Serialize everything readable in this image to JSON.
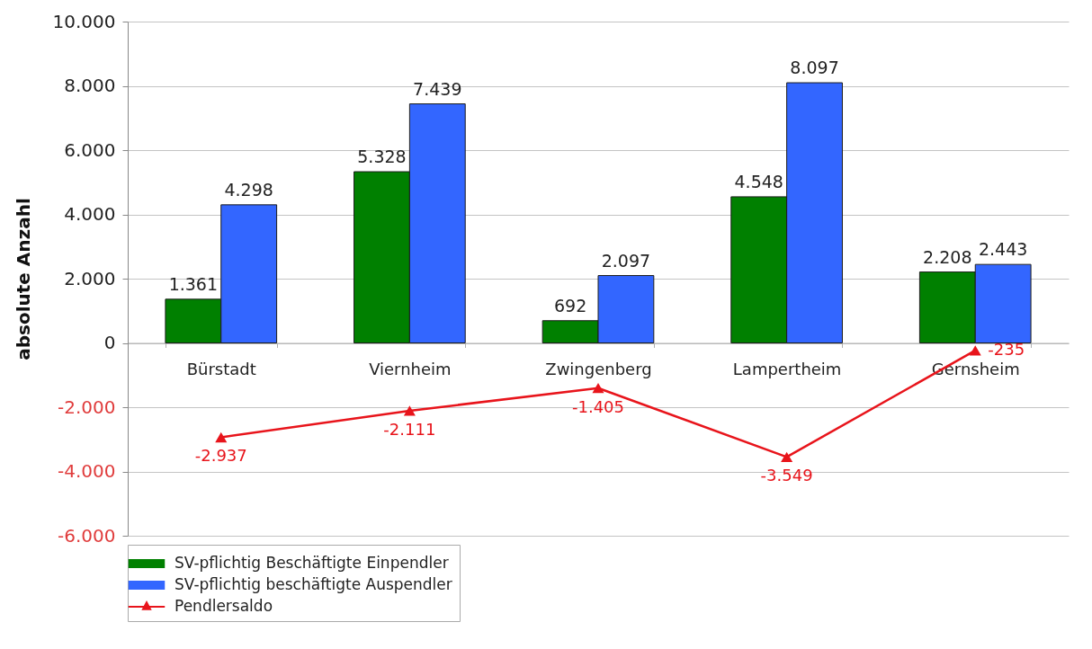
{
  "chart_data": {
    "type": "bar",
    "ylabel": "absolute Anzahl",
    "categories": [
      "Bürstadt",
      "Viernheim",
      "Zwingenberg",
      "Lampertheim",
      "Gernsheim"
    ],
    "series": [
      {
        "name": "SV-pflichtig Beschäftigte Einpendler",
        "color": "#008000",
        "values": [
          1361,
          5328,
          692,
          4548,
          2208
        ],
        "value_labels": [
          "1.361",
          "5.328",
          "692",
          "4.548",
          "2.208"
        ]
      },
      {
        "name": "SV-pflichtig beschäftigte Auspendler",
        "color": "#3366ff",
        "values": [
          4298,
          7439,
          2097,
          8097,
          2443
        ],
        "value_labels": [
          "4.298",
          "7.439",
          "2.097",
          "8.097",
          "2.443"
        ]
      },
      {
        "name": "Pendlersaldo",
        "type": "line",
        "color": "#e8141b",
        "values": [
          -2937,
          -2111,
          -1405,
          -3549,
          -235
        ],
        "value_labels": [
          "-2.937",
          "-2.111",
          "-1.405",
          "-3.549",
          "-235"
        ]
      }
    ],
    "ylim": [
      -6000,
      10000
    ],
    "yticks": [
      {
        "value": -6000,
        "label": "-6.000"
      },
      {
        "value": -4000,
        "label": "-4.000"
      },
      {
        "value": -2000,
        "label": "-2.000"
      },
      0,
      {
        "value": 2000,
        "label": "2.000"
      },
      {
        "value": 4000,
        "label": "4.000"
      },
      {
        "value": 6000,
        "label": "6.000"
      },
      {
        "value": 8000,
        "label": "8.000"
      },
      {
        "value": 10000,
        "label": "10.000"
      }
    ],
    "grid": "y",
    "legend": "bottom",
    "marker": "triangle"
  }
}
